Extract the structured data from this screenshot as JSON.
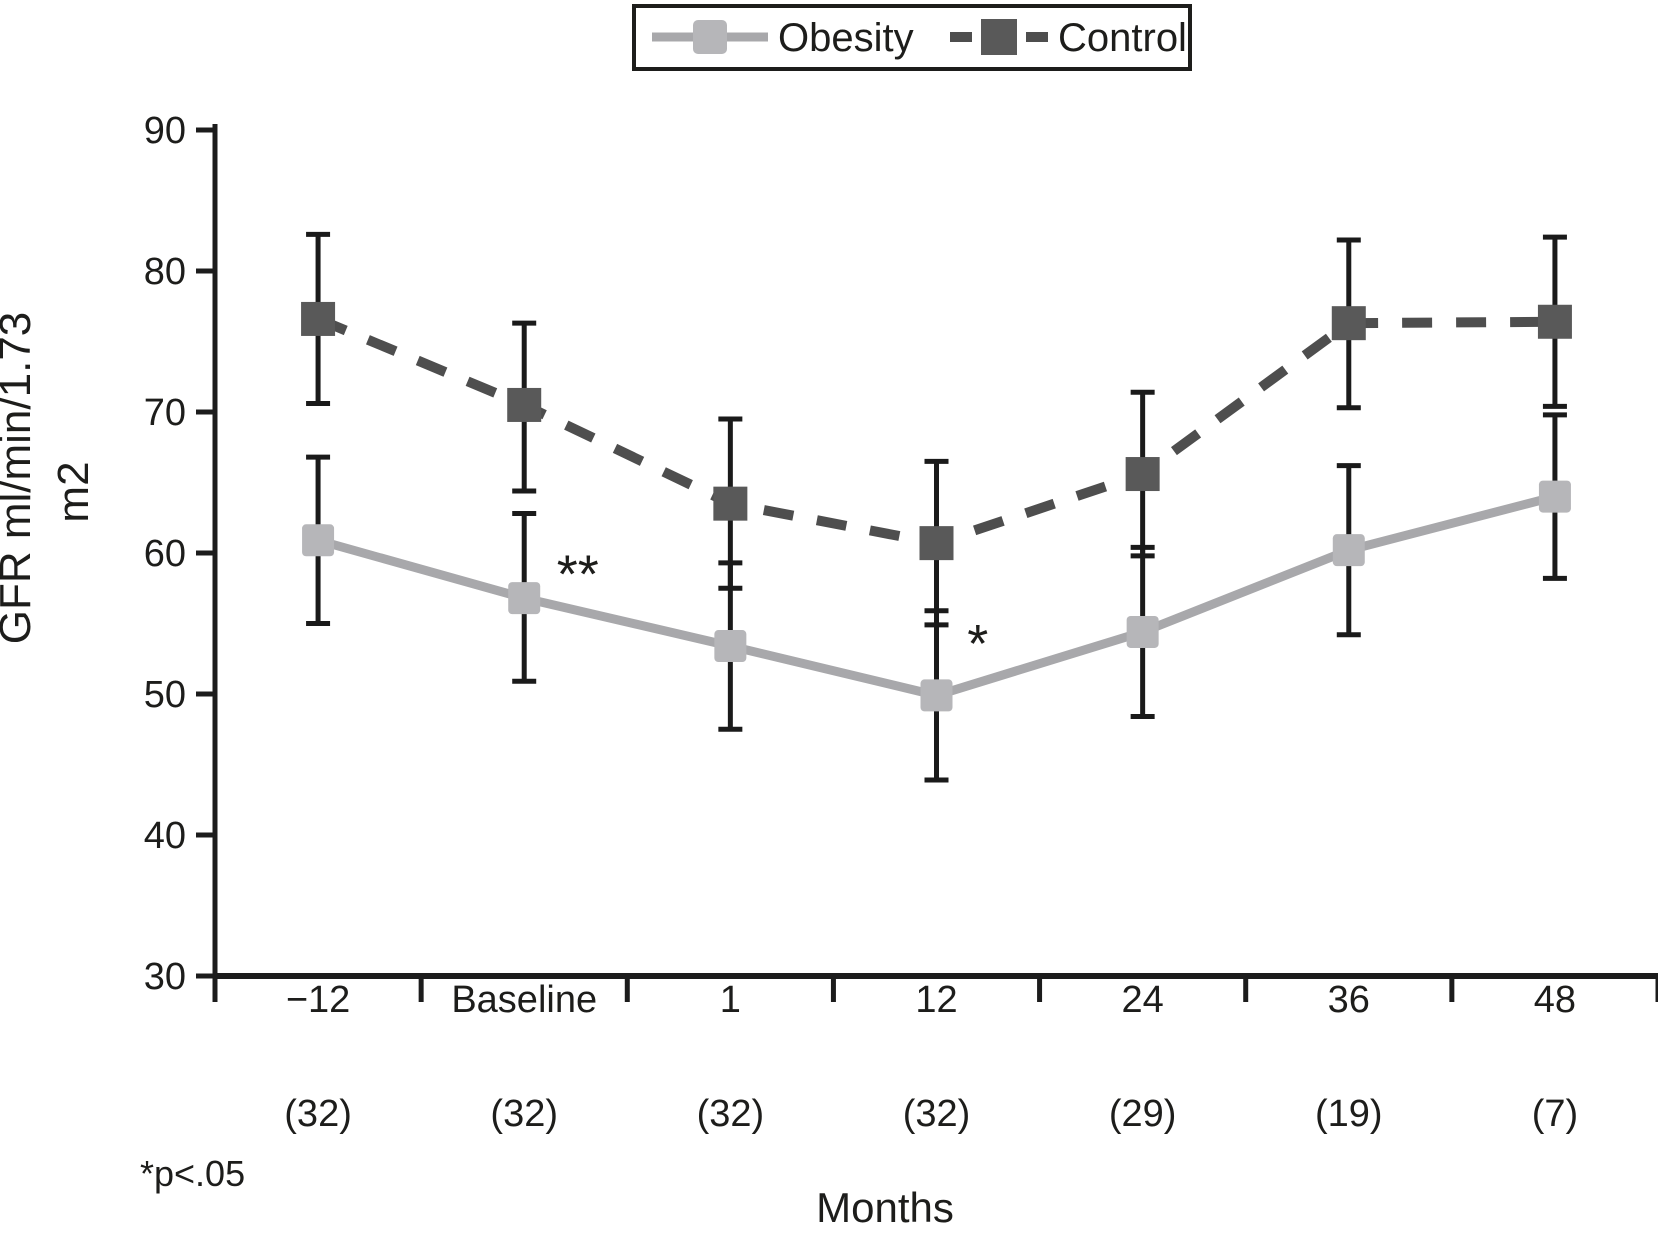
{
  "figure": {
    "background": "#ffffff",
    "text_color": "#1d1d1b",
    "axis_color": "#1c1c1c",
    "error_bar_color": "#1a1a1a"
  },
  "legend": {
    "items": [
      {
        "label": "Obesity",
        "marker_color": "#b6b6b9",
        "line_color": "#a8a8ab",
        "line_style": "solid"
      },
      {
        "label": "Control",
        "marker_color": "#595959",
        "line_color": "#4e4e4e",
        "line_style": "dashed"
      }
    ]
  },
  "chart_data": {
    "type": "line",
    "title": "",
    "xlabel": "Months",
    "ylabel": "GFR ml/min/1.73 m2",
    "ylabel_lines": [
      "GFR ml/min/1.73",
      "m2"
    ],
    "ylim": [
      30,
      90
    ],
    "yticks": [
      30,
      40,
      50,
      60,
      70,
      80,
      90
    ],
    "grid": false,
    "legend_position": "top-center",
    "categories": [
      "−12",
      "Baseline",
      "1",
      "12",
      "24",
      "36",
      "48"
    ],
    "n_counts": [
      "(32)",
      "(32)",
      "(32)",
      "(32)",
      "(29)",
      "(19)",
      "(7)"
    ],
    "series": [
      {
        "name": "Obesity",
        "style": "solid",
        "marker": "square-light-gray",
        "values": [
          60.9,
          56.8,
          53.4,
          49.9,
          54.4,
          60.2,
          64.0
        ],
        "err_low": [
          55.0,
          50.9,
          47.5,
          43.9,
          48.4,
          54.2,
          58.2
        ],
        "err_high": [
          66.8,
          62.8,
          59.3,
          55.9,
          60.4,
          66.2,
          69.8
        ]
      },
      {
        "name": "Control",
        "style": "dashed",
        "marker": "square-dark-gray",
        "values": [
          76.6,
          70.5,
          63.5,
          60.7,
          65.6,
          76.3,
          76.4
        ],
        "err_low": [
          70.6,
          64.4,
          57.5,
          54.9,
          59.8,
          70.3,
          70.4
        ],
        "err_high": [
          82.6,
          76.3,
          69.5,
          66.5,
          71.4,
          82.2,
          82.4
        ]
      }
    ],
    "annotations": [
      {
        "text": "**",
        "x_index": 1,
        "x_frac_offset": 0.26,
        "value": 58.6
      },
      {
        "text": "*",
        "x_index": 3,
        "x_frac_offset": 0.2,
        "value": 53.7
      }
    ],
    "footnote": "*p<.05"
  }
}
